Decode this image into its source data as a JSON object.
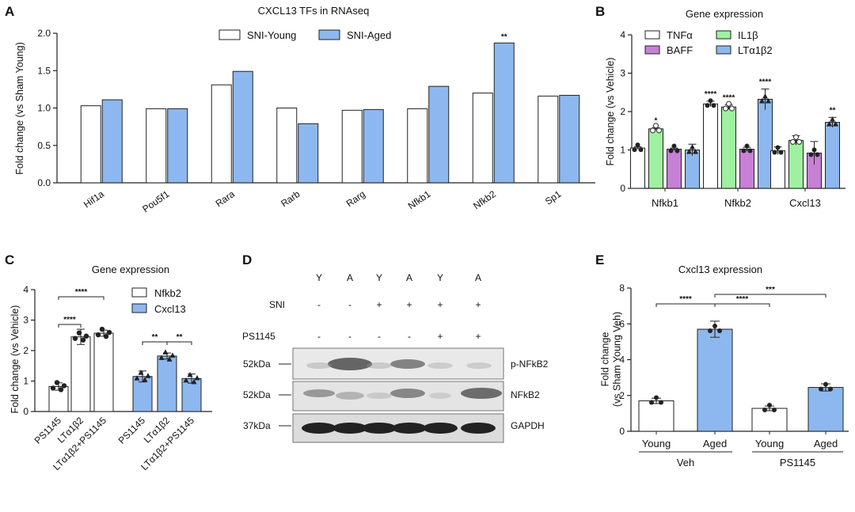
{
  "colors": {
    "young": "#ffffff",
    "aged": "#8db8ef",
    "tnf": "#ffffff",
    "il1b": "#9ff0a0",
    "baff": "#c87fd6",
    "lta": "#8db8ef"
  },
  "panels": {
    "A": "A",
    "B": "B",
    "C": "C",
    "D": "D",
    "E": "E"
  },
  "chart_data": [
    {
      "id": "A",
      "type": "bar",
      "title": "CXCL13 TFs in RNAseq",
      "ylabel": "Fold change (vs Sham Young)",
      "ylim": [
        0,
        2.0
      ],
      "yticks": [
        "0.0",
        "0.5",
        "1.0",
        "1.5",
        "2.0"
      ],
      "categories": [
        "Hif1a",
        "Pou5f1",
        "Rara",
        "Rarb",
        "Rarg",
        "Nfkb1",
        "Nfkb2",
        "Sp1"
      ],
      "series": [
        {
          "name": "SNI-Young",
          "values": [
            1.03,
            0.99,
            1.31,
            1.0,
            0.97,
            0.99,
            1.2,
            1.16
          ]
        },
        {
          "name": "SNI-Aged",
          "values": [
            1.11,
            0.99,
            1.49,
            0.79,
            0.98,
            1.29,
            1.87,
            1.17
          ]
        }
      ],
      "annotations": [
        {
          "category": "Nfkb2",
          "series": 1,
          "text": "**"
        }
      ]
    },
    {
      "id": "B",
      "type": "bar",
      "title": "Gene expression",
      "ylabel": "Fold change (vs Vehicle)",
      "ylim": [
        0,
        4
      ],
      "yticks": [
        "0",
        "1",
        "2",
        "3",
        "4"
      ],
      "categories": [
        "Nfkb1",
        "Nfkb2",
        "Cxcl13"
      ],
      "series": [
        {
          "name": "TNFα",
          "values": [
            1.05,
            2.2,
            0.98
          ],
          "err": [
            0.03,
            0.07,
            0.1
          ]
        },
        {
          "name": "IL1β",
          "values": [
            1.55,
            2.12,
            1.25
          ],
          "err": [
            0.03,
            0.06,
            0.12
          ]
        },
        {
          "name": "BAFF",
          "values": [
            1.02,
            1.02,
            0.92
          ],
          "err": [
            0.03,
            0.05,
            0.3
          ]
        },
        {
          "name": "LTα1β2",
          "values": [
            1.0,
            2.32,
            1.72
          ],
          "err": [
            0.15,
            0.27,
            0.13
          ]
        }
      ],
      "annotations": [
        {
          "category": "Nfkb1",
          "series": 1,
          "text": "*"
        },
        {
          "category": "Nfkb2",
          "series": 0,
          "text": "****"
        },
        {
          "category": "Nfkb2",
          "series": 1,
          "text": "****"
        },
        {
          "category": "Nfkb2",
          "series": 3,
          "text": "****"
        },
        {
          "category": "Cxcl13",
          "series": 3,
          "text": "**"
        }
      ]
    },
    {
      "id": "C",
      "type": "bar",
      "title": "Gene expression",
      "ylabel": "Fold change (vs Vehicle)",
      "ylim": [
        0,
        4
      ],
      "yticks": [
        "0",
        "1",
        "2",
        "3",
        "4"
      ],
      "categories": [
        "PS1145",
        "LTα1β2",
        "LTα1β2+PS1145",
        "PS1145",
        "LTα1β2",
        "LTα1β2+PS1145"
      ],
      "series": [
        {
          "name": "Nfkb2",
          "values": [
            0.82,
            2.45,
            2.57,
            null,
            null,
            null
          ],
          "err": [
            0.12,
            0.25,
            0.1,
            null,
            null,
            null
          ]
        },
        {
          "name": "Cxcl13",
          "values": [
            null,
            null,
            null,
            1.15,
            1.82,
            1.08
          ],
          "err": [
            null,
            null,
            null,
            0.18,
            0.1,
            0.15
          ]
        }
      ],
      "brackets": [
        {
          "from": 0,
          "to": 1,
          "text": "****"
        },
        {
          "from": 0,
          "to": 2,
          "text": "****"
        },
        {
          "from": 3,
          "to": 4,
          "text": "**"
        },
        {
          "from": 4,
          "to": 5,
          "text": "**"
        }
      ]
    },
    {
      "id": "E",
      "type": "bar",
      "title": "Cxcl13 expression",
      "ylabel": "Fold change\n(vs Sham Young Veh)",
      "ylim": [
        0,
        8
      ],
      "yticks": [
        "0",
        "2",
        "4",
        "6",
        "8"
      ],
      "categories": [
        "Young",
        "Aged",
        "Young",
        "Aged"
      ],
      "groups": [
        {
          "label": "Veh",
          "from": 0,
          "to": 1
        },
        {
          "label": "PS1145",
          "from": 2,
          "to": 3
        }
      ],
      "values": [
        1.7,
        5.7,
        1.28,
        2.45
      ],
      "err": [
        0.15,
        0.45,
        0.13,
        0.2
      ],
      "brackets": [
        {
          "from": 0,
          "to": 1,
          "text": "****"
        },
        {
          "from": 1,
          "to": 2,
          "text": "****"
        },
        {
          "from": 1,
          "to": 3,
          "text": "***"
        }
      ]
    }
  ],
  "western": {
    "lanes": [
      "Y",
      "A",
      "Y",
      "A",
      "Y",
      "A"
    ],
    "rows": [
      {
        "label": "SNI",
        "values": [
          "-",
          "-",
          "+",
          "+",
          "+",
          "+"
        ]
      },
      {
        "label": "PS1145",
        "values": [
          "-",
          "-",
          "-",
          "-",
          "+",
          "+"
        ]
      }
    ],
    "blots": [
      {
        "mw": "52kDa",
        "protein": "p-NFkB2"
      },
      {
        "mw": "52kDa",
        "protein": "NFkB2"
      },
      {
        "mw": "37kDa",
        "protein": "GAPDH"
      }
    ]
  }
}
